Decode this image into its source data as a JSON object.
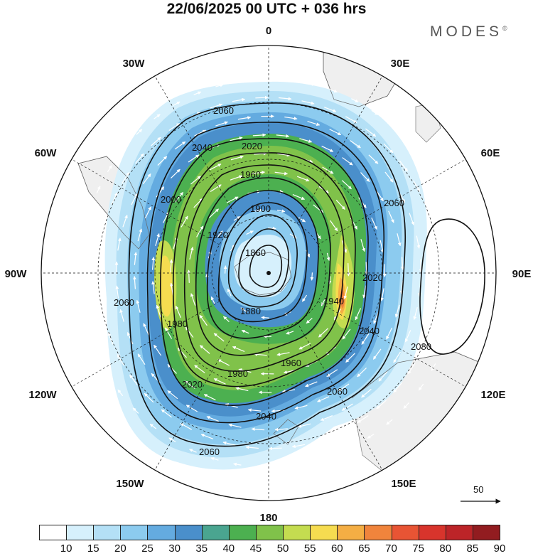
{
  "title": "22/06/2025  00 UTC  + 036 hrs",
  "brand": "MODES",
  "brand_mark": "©",
  "map": {
    "projection": "polar-stereographic-south",
    "longitude_labels": [
      {
        "id": "0",
        "text": "0"
      },
      {
        "id": "30E",
        "text": "30E"
      },
      {
        "id": "60E",
        "text": "60E"
      },
      {
        "id": "90E",
        "text": "90E"
      },
      {
        "id": "120E",
        "text": "120E"
      },
      {
        "id": "150E",
        "text": "150E"
      },
      {
        "id": "180",
        "text": "180"
      },
      {
        "id": "150W",
        "text": "150W"
      },
      {
        "id": "120W",
        "text": "120W"
      },
      {
        "id": "90W",
        "text": "90W"
      },
      {
        "id": "60W",
        "text": "60W"
      },
      {
        "id": "30W",
        "text": "30W"
      }
    ],
    "contour_labels": [
      "2060",
      "2040",
      "2020",
      "1960",
      "1900",
      "1860",
      "1880",
      "1920",
      "1940",
      "1980",
      "2000",
      "2080"
    ],
    "vector_reference": "50"
  },
  "colorbar": {
    "ticks": [
      "10",
      "15",
      "20",
      "25",
      "30",
      "35",
      "40",
      "45",
      "50",
      "55",
      "60",
      "65",
      "70",
      "75",
      "80",
      "85",
      "90"
    ],
    "colors": [
      "#ffffff",
      "#d6f0fc",
      "#b4e0f6",
      "#8ccbef",
      "#64abe0",
      "#4a8fcb",
      "#4aa590",
      "#4cb050",
      "#80c24a",
      "#c4dc50",
      "#f6dc50",
      "#f4ae44",
      "#f0843c",
      "#e85434",
      "#d8342c",
      "#bc2428",
      "#921c20"
    ]
  }
}
